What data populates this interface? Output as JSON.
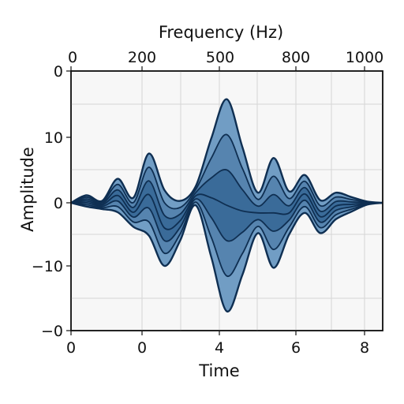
{
  "chart_data": {
    "type": "area",
    "xlabel": "Time",
    "ylabel": "Amplitude",
    "x2label": "Frequency (Hz)",
    "x_ticks": [
      "0",
      "0",
      "4",
      "6",
      "8"
    ],
    "x2_ticks": [
      "0",
      "200",
      "500",
      "800",
      "1000"
    ],
    "y_ticks": [
      "0",
      "10",
      "0",
      "−10",
      "−0"
    ],
    "ylim": [
      -20,
      20
    ],
    "grid": true,
    "layers": 6,
    "envelope": {
      "x_index": [
        0,
        0.5,
        1,
        1.5,
        2,
        2.5,
        3,
        3.5,
        4,
        4.5,
        5,
        5.5,
        6,
        6.5,
        7,
        7.5,
        8,
        8.5,
        9,
        9.5,
        10
      ],
      "upper": [
        0,
        1.2,
        0.3,
        3.8,
        0.8,
        7.8,
        2.0,
        0.3,
        2.6,
        10.2,
        16.4,
        8.8,
        1.6,
        7.1,
        1.8,
        4.4,
        0.4,
        1.6,
        0.9,
        0.2,
        0
      ],
      "lower": [
        0,
        -0.6,
        -1.0,
        -1.5,
        -3.8,
        -5.2,
        -10.0,
        -6.0,
        -0.4,
        -8.6,
        -17.2,
        -11.4,
        -4.8,
        -10.3,
        -5.0,
        -1.6,
        -4.8,
        -2.6,
        -1.4,
        -0.3,
        0
      ]
    },
    "colors": {
      "fill_dark": "#2c5f8e",
      "fill_light": "#7fa9cf",
      "stroke": "#0f2f52",
      "background": "#f7f7f7",
      "grid": "#d6d6d6"
    }
  }
}
